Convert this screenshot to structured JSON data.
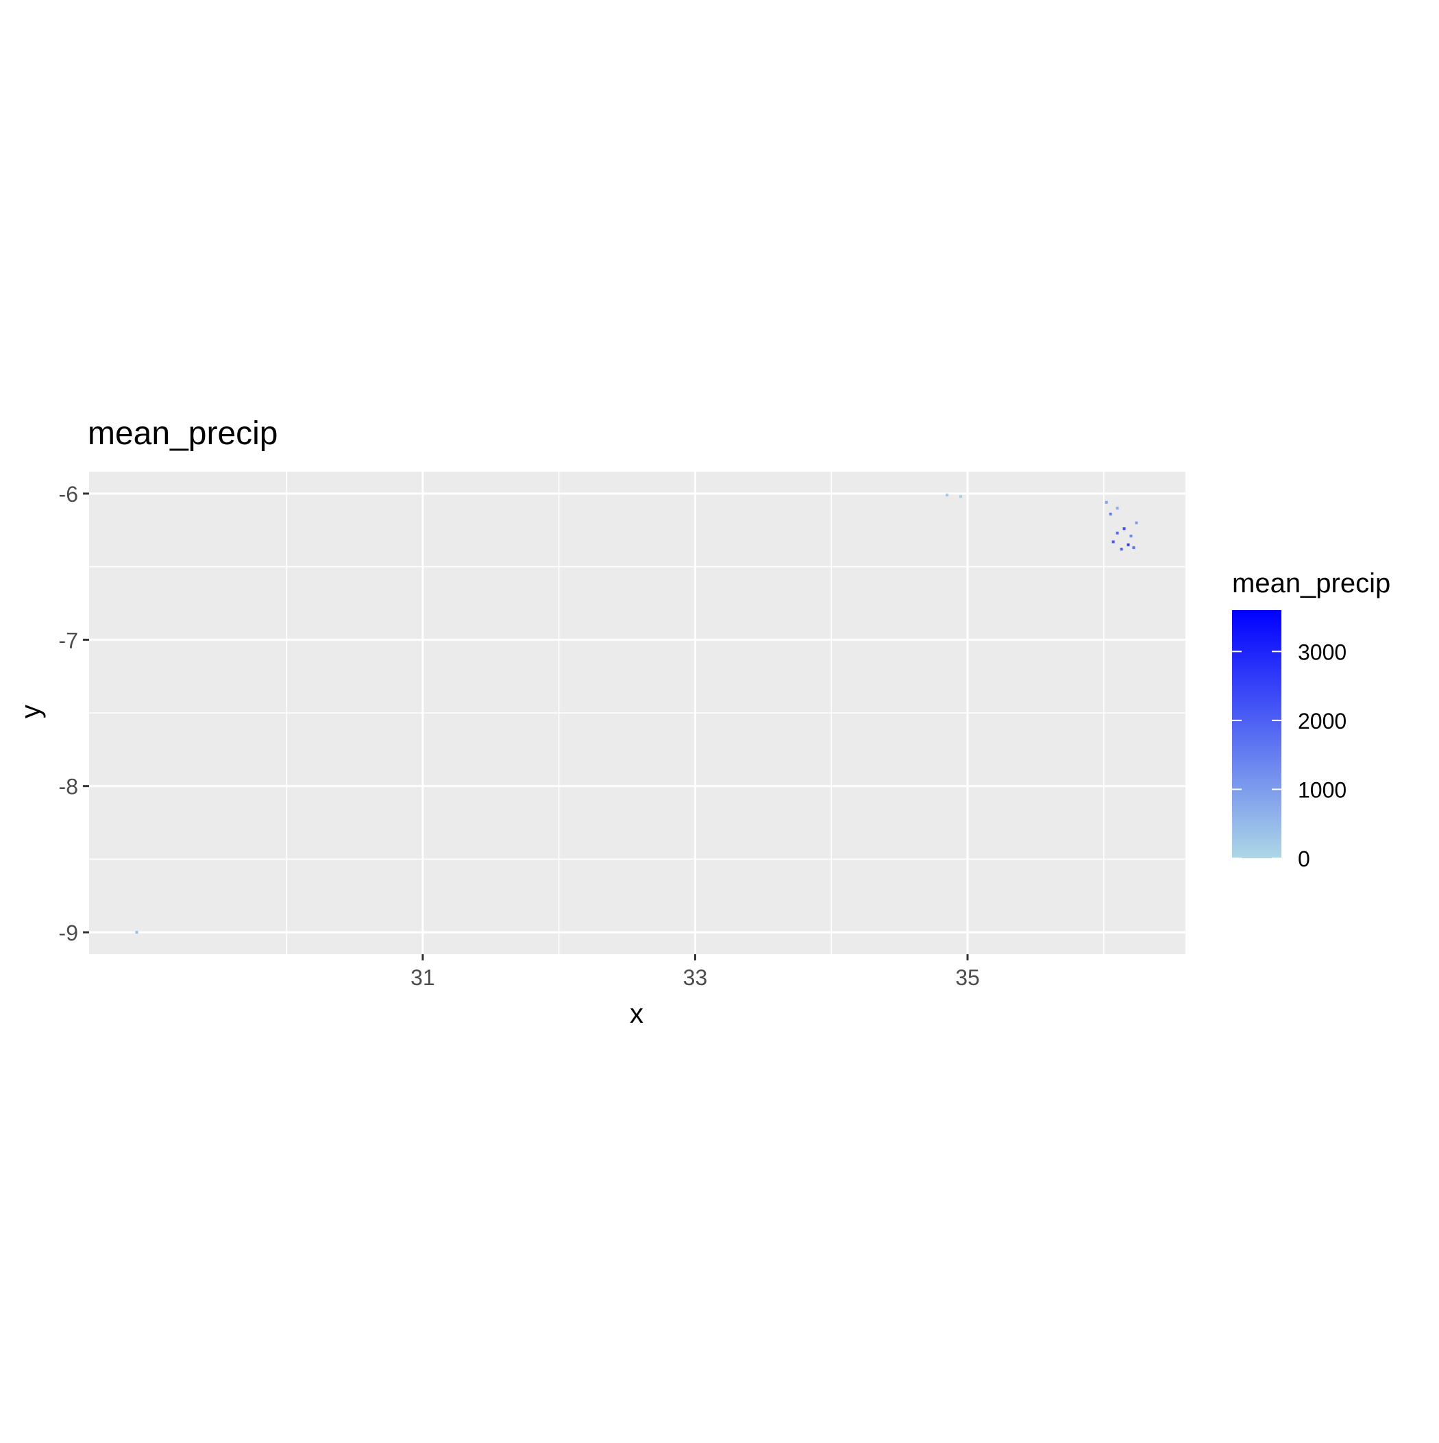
{
  "chart_data": {
    "type": "heatmap",
    "title": "mean_precip",
    "xlabel": "x",
    "ylabel": "y",
    "xlim": [
      28.55,
      36.6
    ],
    "ylim": [
      -9.15,
      -5.85
    ],
    "x_ticks": [
      31,
      33,
      35
    ],
    "x_tick_labels": [
      "31",
      "33",
      "35"
    ],
    "x_minor_gridlines": [
      30,
      32,
      34,
      36
    ],
    "y_ticks": [
      -6,
      -7,
      -8,
      -9
    ],
    "y_tick_labels": [
      "-6",
      "-7",
      "-8",
      "-9"
    ],
    "y_minor_gridlines": [
      -6.5,
      -7.5,
      -8.5
    ],
    "grid": true,
    "panel_background": "#ebebeb",
    "gridline_color": "#ffffff",
    "legend": {
      "title": "mean_precip",
      "placement": "right",
      "low_color": "#add8e6",
      "high_color": "#0000ff",
      "min": 0,
      "max": 3600,
      "breaks": [
        0,
        1000,
        2000,
        3000
      ],
      "break_labels": [
        "0",
        "1000",
        "2000",
        "3000"
      ]
    },
    "points": [
      {
        "x": 34.85,
        "y": -6.01,
        "value": 300
      },
      {
        "x": 34.95,
        "y": -6.02,
        "value": 200
      },
      {
        "x": 36.02,
        "y": -6.06,
        "value": 900
      },
      {
        "x": 36.1,
        "y": -6.1,
        "value": 700
      },
      {
        "x": 36.05,
        "y": -6.14,
        "value": 1500
      },
      {
        "x": 36.24,
        "y": -6.2,
        "value": 1000
      },
      {
        "x": 36.15,
        "y": -6.24,
        "value": 2300
      },
      {
        "x": 36.1,
        "y": -6.27,
        "value": 1800
      },
      {
        "x": 36.2,
        "y": -6.29,
        "value": 1300
      },
      {
        "x": 36.07,
        "y": -6.33,
        "value": 2100
      },
      {
        "x": 36.18,
        "y": -6.35,
        "value": 2600
      },
      {
        "x": 36.22,
        "y": -6.37,
        "value": 1700
      },
      {
        "x": 36.13,
        "y": -6.38,
        "value": 1900
      },
      {
        "x": 28.9,
        "y": -9.0,
        "value": 400
      }
    ]
  }
}
